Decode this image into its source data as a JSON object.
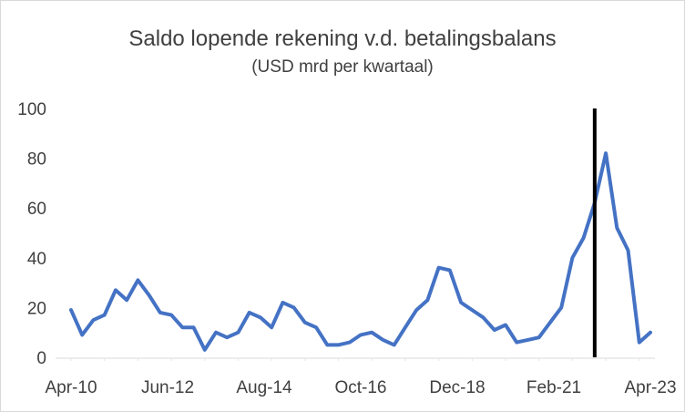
{
  "chart_data": {
    "type": "line",
    "title": "Saldo lopende rekening v.d. betalingsbalans",
    "subtitle": "(USD mrd per kwartaal)",
    "xlabel": "",
    "ylabel": "",
    "ylim": [
      0,
      100
    ],
    "y_ticks": [
      0,
      20,
      40,
      60,
      80,
      100
    ],
    "x_tick_labels": [
      "Apr-10",
      "Jun-12",
      "Aug-14",
      "Oct-16",
      "Dec-18",
      "Feb-21",
      "Apr-23"
    ],
    "grid": false,
    "legend": "none",
    "line_color": "#4472C4",
    "marker_line_color": "#000000",
    "vertical_marker_at": "Q1-22",
    "series": [
      {
        "x": [
          "Q2-10",
          "Q3-10",
          "Q4-10",
          "Q1-11",
          "Q2-11",
          "Q3-11",
          "Q4-11",
          "Q1-12",
          "Q2-12",
          "Q3-12",
          "Q4-12",
          "Q1-13",
          "Q2-13",
          "Q3-13",
          "Q4-13",
          "Q1-14",
          "Q2-14",
          "Q3-14",
          "Q4-14",
          "Q1-15",
          "Q2-15",
          "Q3-15",
          "Q4-15",
          "Q1-16",
          "Q2-16",
          "Q3-16",
          "Q4-16",
          "Q1-17",
          "Q2-17",
          "Q3-17",
          "Q4-17",
          "Q1-18",
          "Q2-18",
          "Q3-18",
          "Q4-18",
          "Q1-19",
          "Q2-19",
          "Q3-19",
          "Q4-19",
          "Q1-20",
          "Q2-20",
          "Q3-20",
          "Q4-20",
          "Q1-21",
          "Q2-21",
          "Q3-21",
          "Q4-21",
          "Q1-22",
          "Q2-22",
          "Q3-22",
          "Q4-22",
          "Q1-23",
          "Q2-23"
        ],
        "values": [
          19,
          9,
          15,
          17,
          27,
          23,
          31,
          25,
          18,
          17,
          12,
          12,
          3,
          10,
          8,
          10,
          18,
          16,
          12,
          22,
          20,
          14,
          12,
          5,
          5,
          6,
          9,
          10,
          7,
          5,
          12,
          19,
          23,
          36,
          35,
          22,
          19,
          16,
          11,
          13,
          6,
          7,
          8,
          14,
          20,
          40,
          48,
          62,
          82,
          52,
          43,
          6,
          10
        ]
      }
    ]
  }
}
